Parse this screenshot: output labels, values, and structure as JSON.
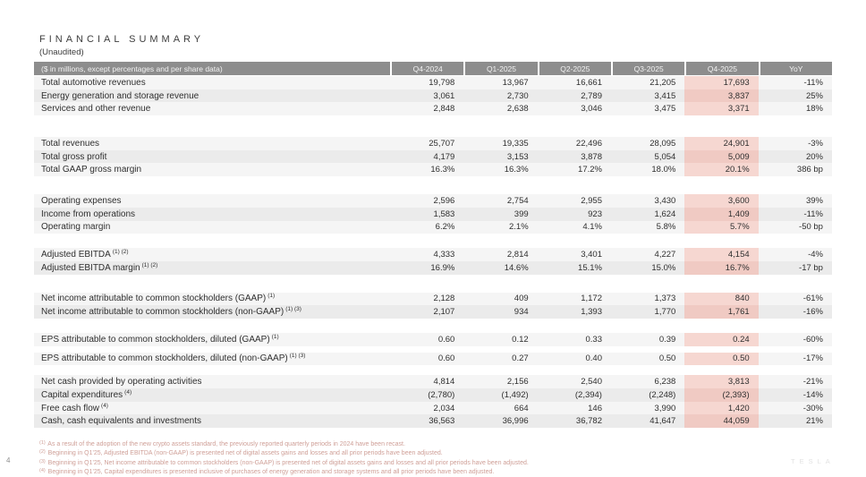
{
  "title": "FINANCIAL SUMMARY",
  "subtitle": "(Unaudited)",
  "page_number": "4",
  "watermark": "TESLA",
  "colors": {
    "header_bg": "#8d8d8d",
    "header_text": "#f2f2f2",
    "row_light": "#f5f5f5",
    "row_dark": "#ebebeb",
    "highlight_light": "#f6d7d1",
    "highlight_dark": "#f0cac3",
    "footnote_text": "#cf9f97"
  },
  "table": {
    "columns": [
      "($ in millions, except percentages and per share data)",
      "Q4-2024",
      "Q1-2025",
      "Q2-2025",
      "Q3-2025",
      "Q4-2025",
      "YoY"
    ],
    "highlight_column": "Q4-2025",
    "sections": [
      {
        "id": "revenues",
        "rows": [
          {
            "label": "Total automotive revenues",
            "sup": "",
            "values": [
              "19,798",
              "13,967",
              "16,661",
              "21,205",
              "17,693",
              "-11%"
            ]
          },
          {
            "label": "Energy generation and storage revenue",
            "sup": "",
            "values": [
              "3,061",
              "2,730",
              "2,789",
              "3,415",
              "3,837",
              "25%"
            ]
          },
          {
            "label": "Services and other revenue",
            "sup": "",
            "values": [
              "2,848",
              "2,638",
              "3,046",
              "3,475",
              "3,371",
              "18%"
            ]
          }
        ]
      },
      {
        "id": "totals",
        "rows": [
          {
            "label": "Total revenues",
            "sup": "",
            "values": [
              "25,707",
              "19,335",
              "22,496",
              "28,095",
              "24,901",
              "-3%"
            ]
          },
          {
            "label": "Total gross profit",
            "sup": "",
            "values": [
              "4,179",
              "3,153",
              "3,878",
              "5,054",
              "5,009",
              "20%"
            ]
          },
          {
            "label": "Total GAAP gross margin",
            "sup": "",
            "values": [
              "16.3%",
              "16.3%",
              "17.2%",
              "18.0%",
              "20.1%",
              "386 bp"
            ]
          }
        ]
      },
      {
        "id": "operations",
        "rows": [
          {
            "label": "Operating expenses",
            "sup": "",
            "values": [
              "2,596",
              "2,754",
              "2,955",
              "3,430",
              "3,600",
              "39%"
            ]
          },
          {
            "label": "Income from operations",
            "sup": "",
            "values": [
              "1,583",
              "399",
              "923",
              "1,624",
              "1,409",
              "-11%"
            ]
          },
          {
            "label": "Operating margin",
            "sup": "",
            "values": [
              "6.2%",
              "2.1%",
              "4.1%",
              "5.8%",
              "5.7%",
              "-50 bp"
            ]
          }
        ]
      },
      {
        "id": "ebitda",
        "rows": [
          {
            "label": "Adjusted EBITDA",
            "sup": "(1) (2)",
            "values": [
              "4,333",
              "2,814",
              "3,401",
              "4,227",
              "4,154",
              "-4%"
            ]
          },
          {
            "label": "Adjusted EBITDA margin",
            "sup": "(1) (2)",
            "values": [
              "16.9%",
              "14.6%",
              "15.1%",
              "15.0%",
              "16.7%",
              "-17 bp"
            ]
          }
        ]
      },
      {
        "id": "net-income",
        "rows": [
          {
            "label": "Net income attributable to common stockholders (GAAP)",
            "sup": "(1)",
            "values": [
              "2,128",
              "409",
              "1,172",
              "1,373",
              "840",
              "-61%"
            ]
          },
          {
            "label": "Net income attributable to common stockholders (non-GAAP)",
            "sup": "(1) (3)",
            "values": [
              "2,107",
              "934",
              "1,393",
              "1,770",
              "1,761",
              "-16%"
            ]
          }
        ]
      },
      {
        "id": "eps-gaap",
        "rows": [
          {
            "label": "EPS attributable to common stockholders, diluted (GAAP)",
            "sup": "(1)",
            "values": [
              "0.60",
              "0.12",
              "0.33",
              "0.39",
              "0.24",
              "-60%"
            ]
          }
        ]
      },
      {
        "id": "eps-non-gaap",
        "rows": [
          {
            "label": "EPS attributable to common stockholders, diluted (non-GAAP)",
            "sup": "(1) (3)",
            "values": [
              "0.60",
              "0.27",
              "0.40",
              "0.50",
              "0.50",
              "-17%"
            ]
          }
        ]
      },
      {
        "id": "cash",
        "rows": [
          {
            "label": "Net cash provided by operating activities",
            "sup": "",
            "values": [
              "4,814",
              "2,156",
              "2,540",
              "6,238",
              "3,813",
              "-21%"
            ]
          },
          {
            "label": "Capital expenditures",
            "sup": "(4)",
            "values": [
              "(2,780)",
              "(1,492)",
              "(2,394)",
              "(2,248)",
              "(2,393)",
              "-14%"
            ]
          },
          {
            "label": "Free cash flow",
            "sup": "(4)",
            "values": [
              "2,034",
              "664",
              "146",
              "3,990",
              "1,420",
              "-30%"
            ]
          },
          {
            "label": "Cash, cash equivalents and investments",
            "sup": "",
            "values": [
              "36,563",
              "36,996",
              "36,782",
              "41,647",
              "44,059",
              "21%"
            ]
          }
        ]
      }
    ]
  },
  "footnotes": [
    {
      "marker": "(1)",
      "text": "As a result of the adoption of the new crypto assets standard, the previously reported quarterly periods in 2024 have been recast."
    },
    {
      "marker": "(2)",
      "text": "Beginning in Q1'25, Adjusted EBITDA (non-GAAP) is presented net of digital assets gains and losses and all prior periods have been adjusted."
    },
    {
      "marker": "(3)",
      "text": "Beginning in Q1'25, Net income attributable to common stockholders (non-GAAP) is presented net of digital assets gains and losses and all prior periods have been adjusted."
    },
    {
      "marker": "(4)",
      "text": "Beginning in Q1'25, Capital expenditures is presented inclusive of purchases of energy generation and storage systems and all prior periods have been adjusted."
    }
  ]
}
